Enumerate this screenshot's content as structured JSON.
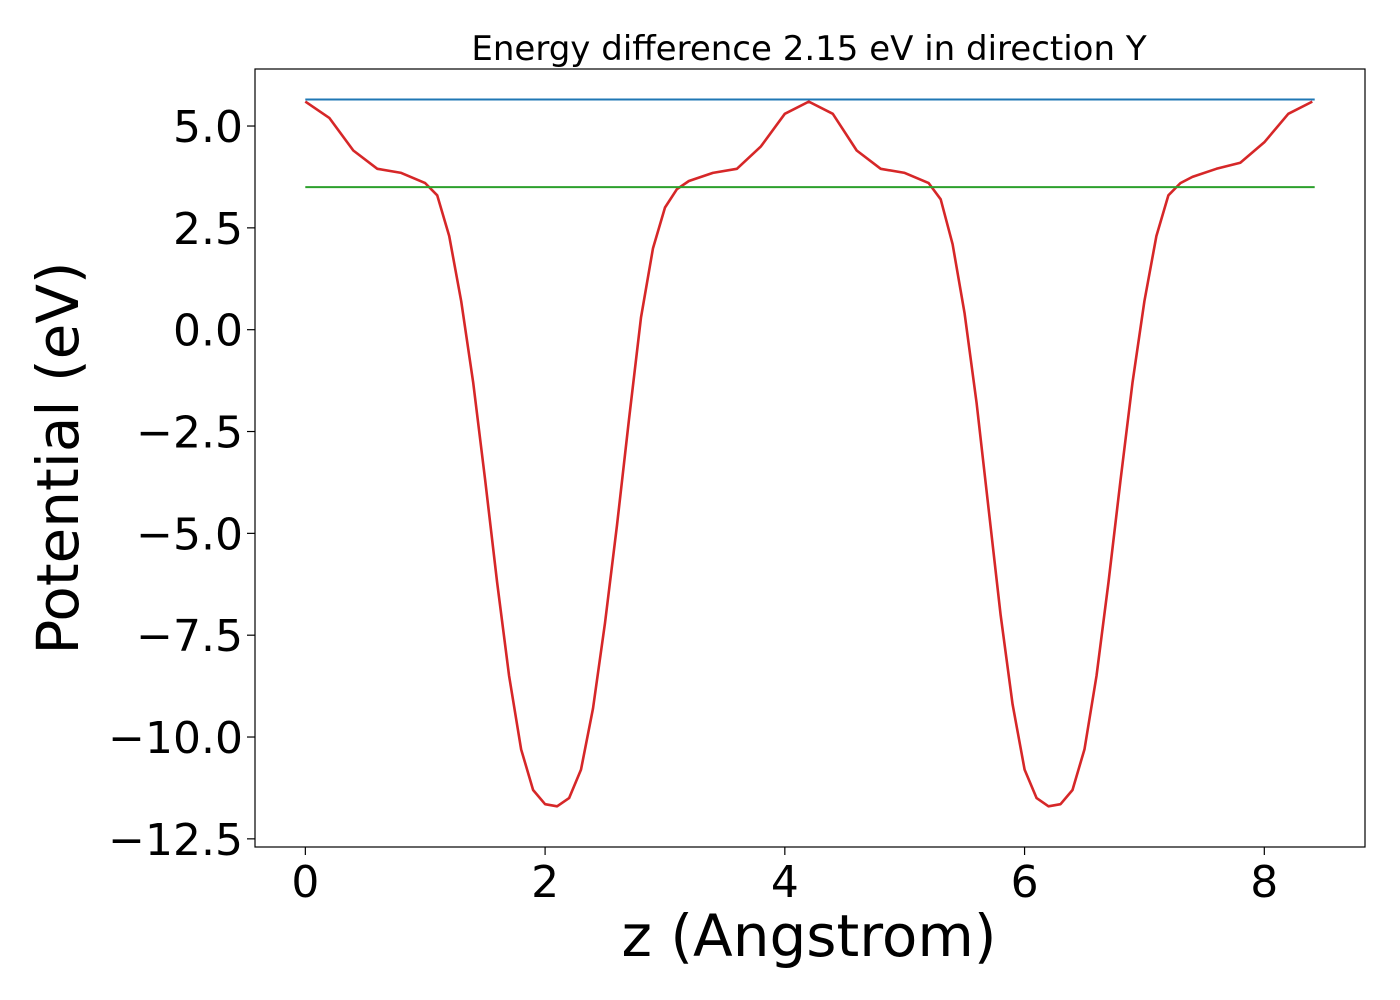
{
  "chart_data": {
    "type": "line",
    "title": "Energy difference 2.15 eV in direction Y",
    "xlabel": "z (Angstrom)",
    "ylabel": "Potential (eV)",
    "xlim": [
      -0.42,
      8.84
    ],
    "ylim": [
      -12.7,
      6.4
    ],
    "xticks": [
      0,
      2,
      4,
      6,
      8
    ],
    "xtick_labels": [
      "0",
      "2",
      "4",
      "6",
      "8"
    ],
    "yticks": [
      5.0,
      2.5,
      0.0,
      -2.5,
      -5.0,
      -7.5,
      -10.0,
      -12.5
    ],
    "ytick_labels": [
      "5.0",
      "2.5",
      "0.0",
      "−2.5",
      "−5.0",
      "−7.5",
      "−10.0",
      "−12.5"
    ],
    "grid": false,
    "legend": null,
    "series": [
      {
        "color": "#d62728",
        "x": [
          0.0,
          0.2,
          0.4,
          0.6,
          0.8,
          1.0,
          1.1,
          1.2,
          1.3,
          1.4,
          1.5,
          1.6,
          1.7,
          1.8,
          1.9,
          2.0,
          2.1,
          2.2,
          2.3,
          2.4,
          2.5,
          2.6,
          2.7,
          2.8,
          2.9,
          3.0,
          3.1,
          3.2,
          3.4,
          3.6,
          3.8,
          4.0,
          4.2,
          4.4,
          4.6,
          4.8,
          5.0,
          5.2,
          5.3,
          5.4,
          5.5,
          5.6,
          5.7,
          5.8,
          5.9,
          6.0,
          6.1,
          6.2,
          6.3,
          6.4,
          6.5,
          6.6,
          6.7,
          6.8,
          6.9,
          7.0,
          7.1,
          7.2,
          7.3,
          7.4,
          7.6,
          7.8,
          8.0,
          8.2,
          8.4
        ],
        "y": [
          5.6,
          5.2,
          4.4,
          3.95,
          3.85,
          3.6,
          3.3,
          2.3,
          0.7,
          -1.3,
          -3.7,
          -6.2,
          -8.5,
          -10.3,
          -11.3,
          -11.65,
          -11.7,
          -11.5,
          -10.8,
          -9.3,
          -7.2,
          -4.8,
          -2.2,
          0.3,
          2.0,
          3.0,
          3.45,
          3.65,
          3.85,
          3.95,
          4.5,
          5.3,
          5.6,
          5.3,
          4.4,
          3.95,
          3.85,
          3.6,
          3.2,
          2.1,
          0.4,
          -1.8,
          -4.4,
          -7.0,
          -9.2,
          -10.8,
          -11.5,
          -11.7,
          -11.65,
          -11.3,
          -10.3,
          -8.5,
          -6.2,
          -3.7,
          -1.3,
          0.7,
          2.3,
          3.3,
          3.6,
          3.75,
          3.95,
          4.1,
          4.6,
          5.3,
          5.6
        ]
      },
      {
        "color": "#1f77b4",
        "x": [
          0.0,
          8.42
        ],
        "y": [
          5.65,
          5.65
        ]
      },
      {
        "color": "#2ca02c",
        "x": [
          0.0,
          8.42
        ],
        "y": [
          3.5,
          3.5
        ]
      }
    ]
  }
}
